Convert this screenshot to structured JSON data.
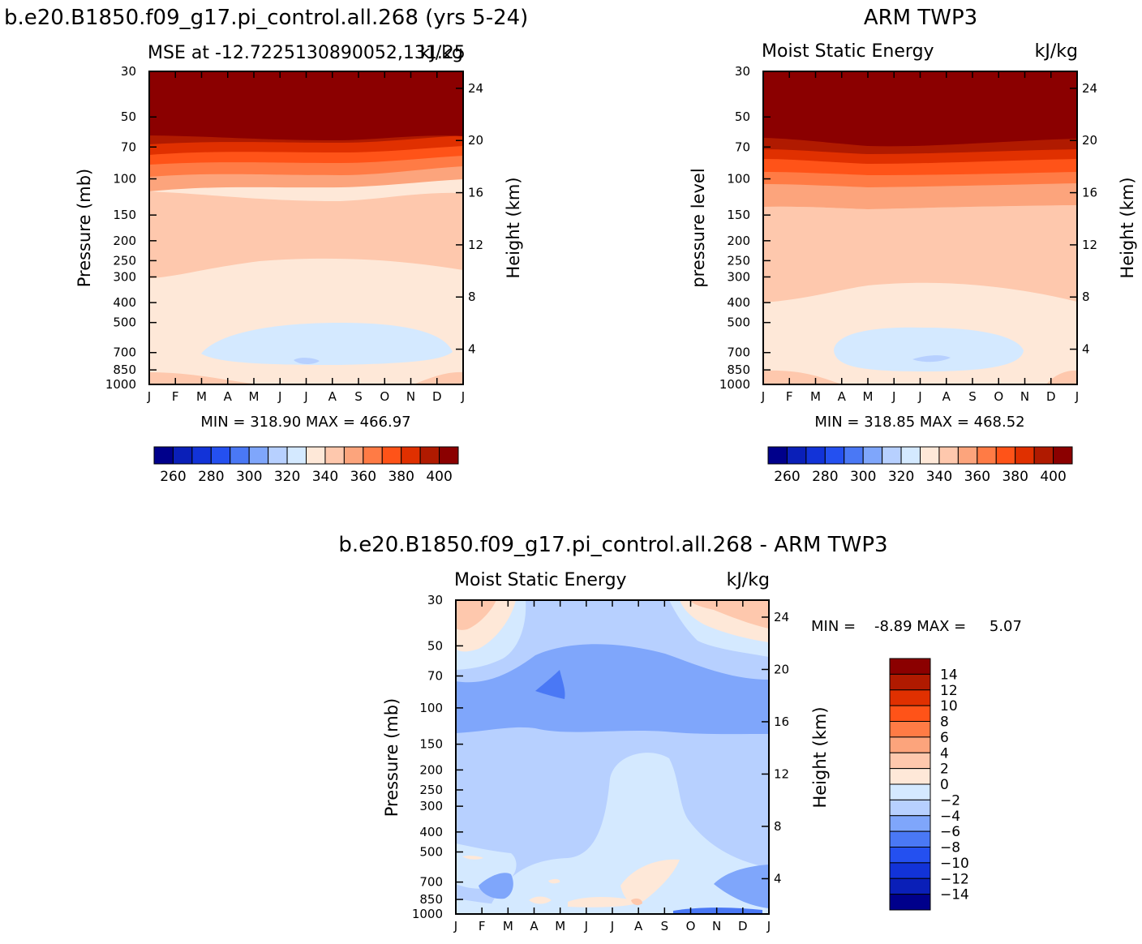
{
  "chart_data": [
    {
      "type": "heatmap",
      "title": "b.e20.B1850.f09_g17.pi_control.all.268 (yrs 5-24)",
      "subtitle_left": "MSE at -12.7225130890052,131.25",
      "subtitle_right": "kJ/kg",
      "ylabel": "Pressure (mb)",
      "ylabel_right": "Height (km)",
      "months": [
        "J",
        "F",
        "M",
        "A",
        "M",
        "J",
        "J",
        "A",
        "S",
        "O",
        "N",
        "D",
        "J"
      ],
      "pressure_ticks": [
        "30",
        "50",
        "70",
        "100",
        "150",
        "200",
        "250",
        "300",
        "400",
        "500",
        "700",
        "850",
        "1000"
      ],
      "height_ticks": [
        "24",
        "20",
        "16",
        "12",
        "8",
        "4"
      ],
      "stats": "MIN = 318.90 MAX = 466.97",
      "colorbar_labels": [
        "260",
        "280",
        "300",
        "320",
        "340",
        "360",
        "380",
        "400"
      ],
      "bands_top_to_bottom": [
        {
          "value": 400,
          "color": "#8b0000"
        },
        {
          "value": 390,
          "color": "#b01a00"
        },
        {
          "value": 380,
          "color": "#e03000"
        },
        {
          "value": 370,
          "color": "#ff5318"
        },
        {
          "value": 360,
          "color": "#ff7b45"
        },
        {
          "value": 350,
          "color": "#fca47c"
        },
        {
          "value": 340,
          "color": "#fec8ad"
        },
        {
          "value": 330,
          "color": "#fee8d8"
        },
        {
          "value": 320,
          "color": "#d4e9ff"
        },
        {
          "value": 310,
          "color": "#b7d0ff"
        }
      ]
    },
    {
      "type": "heatmap",
      "title": "ARM TWP3",
      "subtitle_left": "Moist Static Energy",
      "subtitle_right": "kJ/kg",
      "ylabel": "pressure level",
      "ylabel_right": "Height (km)",
      "months": [
        "J",
        "F",
        "M",
        "A",
        "M",
        "J",
        "J",
        "A",
        "S",
        "O",
        "N",
        "D",
        "J"
      ],
      "pressure_ticks": [
        "30",
        "50",
        "70",
        "100",
        "150",
        "200",
        "250",
        "300",
        "400",
        "500",
        "700",
        "850",
        "1000"
      ],
      "height_ticks": [
        "24",
        "20",
        "16",
        "12",
        "8",
        "4"
      ],
      "stats": "MIN = 318.85 MAX = 468.52",
      "colorbar_labels": [
        "260",
        "280",
        "300",
        "320",
        "340",
        "360",
        "380",
        "400"
      ]
    },
    {
      "type": "heatmap",
      "title": "b.e20.B1850.f09_g17.pi_control.all.268 - ARM TWP3",
      "subtitle_left": "Moist Static Energy",
      "subtitle_right": "kJ/kg",
      "ylabel": "Pressure (mb)",
      "ylabel_right": "Height (km)",
      "months": [
        "J",
        "F",
        "M",
        "A",
        "M",
        "J",
        "J",
        "A",
        "S",
        "O",
        "N",
        "D",
        "J"
      ],
      "pressure_ticks": [
        "30",
        "50",
        "70",
        "100",
        "150",
        "200",
        "250",
        "300",
        "400",
        "500",
        "700",
        "850",
        "1000"
      ],
      "height_ticks": [
        "24",
        "20",
        "16",
        "12",
        "8",
        "4"
      ],
      "stats": "MIN =    -8.89 MAX =     5.07",
      "colorbar_labels": [
        "14",
        "12",
        "10",
        "8",
        "6",
        "4",
        "2",
        "0",
        "-2",
        "-4",
        "-6",
        "-8",
        "-10",
        "-12",
        "-14"
      ]
    }
  ],
  "colors": {
    "abs_scale": [
      "#00008b",
      "#0a1fb8",
      "#1233d8",
      "#2450f0",
      "#4a78f5",
      "#7fa6fb",
      "#b7d0ff",
      "#d4e9ff",
      "#fee8d8",
      "#fec8ad",
      "#fca47c",
      "#ff7b45",
      "#ff5318",
      "#e03000",
      "#b01a00",
      "#8b0000"
    ],
    "diff_scale_top_to_bottom": [
      "#8b0000",
      "#b01a00",
      "#e03000",
      "#ff5318",
      "#ff7b45",
      "#fca47c",
      "#fec8ad",
      "#fee8d8",
      "#d4e9ff",
      "#b7d0ff",
      "#7fa6fb",
      "#4a78f5",
      "#2450f0",
      "#1233d8",
      "#0a1fb8",
      "#00008b"
    ]
  }
}
